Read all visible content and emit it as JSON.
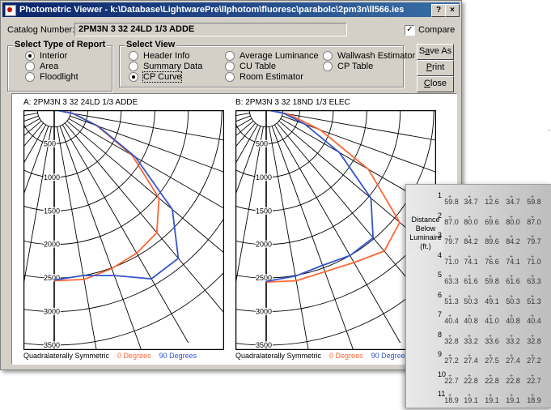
{
  "window": {
    "title": "Photometric Viewer - k:\\Database\\LightwarePre\\llphotom\\fluoresc\\parabolc\\2pm3n\\ll566.ies",
    "help_btn": "?",
    "close_btn": "×"
  },
  "catalog": {
    "label": "Catalog Number:",
    "value": "2PM3N 3 32 24LD 1/3 ADDE",
    "compare_label": "Compare",
    "compare_checked": true
  },
  "report_type": {
    "title": "Select Type of Report",
    "options": [
      "Interior",
      "Area",
      "Floodlight"
    ],
    "selected": "Interior"
  },
  "view": {
    "title": "Select View",
    "col1": [
      "Header Info",
      "Summary Data",
      "CP Curve"
    ],
    "col2": [
      "Average Luminance",
      "CU Table",
      "Room Estimator"
    ],
    "col3": [
      "Wallwash Estimator",
      "CP Table"
    ],
    "selected": "CP Curve"
  },
  "buttons": {
    "save_pre": "S",
    "save_u": "a",
    "save_post": "ve As",
    "print_u": "P",
    "print_post": "rint",
    "close_u": "C",
    "close_post": "lose"
  },
  "chart_data": [
    {
      "type": "polar",
      "title": "A:  2PM3N 3 32 24LD 1/3 ADDE",
      "radial_ticks": [
        500,
        1000,
        1500,
        2000,
        2500,
        3000,
        3500
      ],
      "legend_prefix": "Quadralaterally Symmetric",
      "series": [
        {
          "name": "0 Degrees",
          "color": "#ff6633",
          "points": [
            [
              0,
              2540
            ],
            [
              10,
              2560
            ],
            [
              20,
              2510
            ],
            [
              30,
              2460
            ],
            [
              40,
              2380
            ],
            [
              50,
              2040
            ],
            [
              60,
              1340
            ],
            [
              70,
              680
            ],
            [
              80,
              300
            ],
            [
              90,
              40
            ]
          ]
        },
        {
          "name": "90 Degrees",
          "color": "#3355cc",
          "points": [
            [
              0,
              2530
            ],
            [
              10,
              2500
            ],
            [
              20,
              2620
            ],
            [
              30,
              2900
            ],
            [
              40,
              2880
            ],
            [
              50,
              2300
            ],
            [
              60,
              1400
            ],
            [
              70,
              700
            ],
            [
              80,
              280
            ],
            [
              90,
              30
            ]
          ]
        }
      ]
    },
    {
      "type": "polar",
      "title": "B:  2PM3N 3 32 18ND 1/3 ELEC",
      "radial_ticks": [
        500,
        1000,
        1500,
        2000,
        2500,
        3000,
        3500
      ],
      "legend_prefix": "Quadralaterally Symmetric",
      "series": [
        {
          "name": "0 Degrees",
          "color": "#ff6633",
          "points": [
            [
              0,
              2560
            ],
            [
              10,
              2580
            ],
            [
              20,
              2560
            ],
            [
              30,
              2620
            ],
            [
              40,
              2740
            ],
            [
              50,
              2600
            ],
            [
              60,
              1760
            ],
            [
              70,
              860
            ],
            [
              80,
              340
            ],
            [
              90,
              40
            ]
          ]
        },
        {
          "name": "90 Degrees",
          "color": "#3355cc",
          "points": [
            [
              0,
              2550
            ],
            [
              10,
              2510
            ],
            [
              20,
              2460
            ],
            [
              30,
              2500
            ],
            [
              40,
              2480
            ],
            [
              50,
              2040
            ],
            [
              60,
              1260
            ],
            [
              70,
              620
            ],
            [
              80,
              270
            ],
            [
              90,
              30
            ]
          ]
        }
      ]
    }
  ],
  "footcandle_table": {
    "distance_label": "Distance Below Luminaire (ft.)",
    "rows": [
      {
        "n": "1",
        "vals": [
          "59.8",
          "34.7",
          "12.6",
          "34.7",
          "59.8"
        ]
      },
      {
        "n": "2",
        "vals": [
          "87.0",
          "80.0",
          "69.6",
          "80.0",
          "87.0"
        ]
      },
      {
        "n": "3",
        "vals": [
          "79.7",
          "84.2",
          "89.6",
          "84.2",
          "79.7"
        ]
      },
      {
        "n": "4",
        "vals": [
          "71.0",
          "74.1",
          "76.6",
          "74.1",
          "71.0"
        ]
      },
      {
        "n": "5",
        "vals": [
          "63.3",
          "61.6",
          "59.8",
          "61.6",
          "63.3"
        ]
      },
      {
        "n": "6",
        "vals": [
          "51.3",
          "50.3",
          "49.1",
          "50.3",
          "51.3"
        ]
      },
      {
        "n": "7",
        "vals": [
          "40.4",
          "40.8",
          "41.0",
          "40.8",
          "40.4"
        ]
      },
      {
        "n": "8",
        "vals": [
          "32.8",
          "33.2",
          "33.6",
          "33.2",
          "32.8"
        ]
      },
      {
        "n": "9",
        "vals": [
          "27.2",
          "27.4",
          "27.5",
          "27.4",
          "27.2"
        ]
      },
      {
        "n": "10",
        "vals": [
          "22.7",
          "22.8",
          "22.8",
          "22.8",
          "22.7"
        ]
      },
      {
        "n": "11",
        "vals": [
          "18.9",
          "19.1",
          "19.1",
          "19.1",
          "18.9"
        ]
      }
    ]
  }
}
